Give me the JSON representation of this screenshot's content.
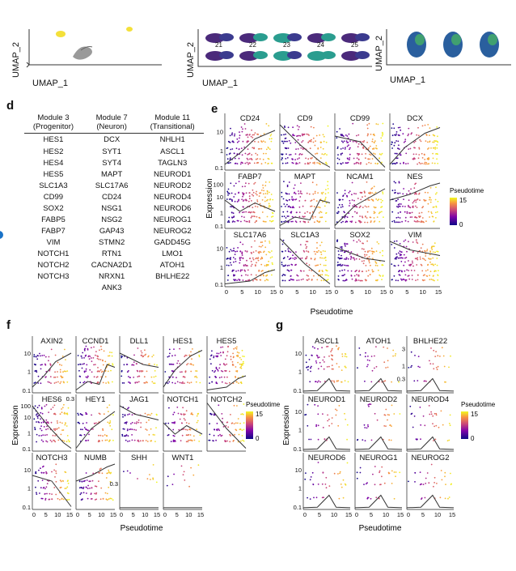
{
  "top_panels": {
    "umap_x_label": "UMAP_1",
    "umap_y_label": "UMAP_2",
    "cluster_labels": [
      "21",
      "22",
      "23",
      "24",
      "25"
    ]
  },
  "panel_d": {
    "letter": "d",
    "headers": [
      {
        "line1": "Module 3",
        "line2": "(Progenitor)"
      },
      {
        "line1": "Module 7",
        "line2": "(Neuron)"
      },
      {
        "line1": "Module 11",
        "line2": "(Transitional)"
      }
    ],
    "columns": [
      [
        "HES1",
        "HES2",
        "HES4",
        "HES5",
        "SLC1A3",
        "CD99",
        "SOX2",
        "FABP5",
        "FABP7",
        "VIM",
        "NOTCH1",
        "NOTCH2",
        "NOTCH3"
      ],
      [
        "DCX",
        "SYT1",
        "SYT4",
        "MAPT",
        "SLC17A6",
        "CD24",
        "NSG1",
        "NSG2",
        "GAP43",
        "STMN2",
        "RTN1",
        "CACNA2D1",
        "NRXN1",
        "ANK3"
      ],
      [
        "NHLH1",
        "ASCL1",
        "TAGLN3",
        "NEUROD1",
        "NEUROD2",
        "NEUROD4",
        "NEUROD6",
        "NEUROG1",
        "NEUROG2",
        "GADD45G",
        "LMO1",
        "ATOH1",
        "BHLHE22"
      ]
    ]
  },
  "panel_e": {
    "letter": "e",
    "genes": [
      "CD24",
      "CD9",
      "CD99",
      "DCX",
      "FABP7",
      "MAPT",
      "NCAM1",
      "NES",
      "SLC17A6",
      "SLC1A3",
      "SOX2",
      "VIM"
    ],
    "y_ticks_a": [
      "10",
      "1",
      "0.1"
    ],
    "y_ticks_b": [
      "100",
      "10",
      "1",
      "0.1"
    ],
    "x_ticks": [
      "0",
      "5",
      "10",
      "15"
    ],
    "xlabel": "Pseudotime",
    "ylabel": "Expression",
    "legend_title": "Pseudotime",
    "legend_max": "15",
    "legend_min": "0"
  },
  "panel_f": {
    "letter": "f",
    "genes": [
      "AXIN2",
      "CCND1",
      "DLL1",
      "HES1",
      "HES5",
      "HES6",
      "HEY1",
      "JAG1",
      "NOTCH1",
      "NOTCH2",
      "NOTCH3",
      "NUMB",
      "SHH",
      "WNT1"
    ],
    "y_ticks_a": [
      "10",
      "1",
      "0.1"
    ],
    "y_ticks_b": [
      "100",
      "10",
      "1",
      "0.1"
    ],
    "y_ticks_c": [
      "0.3"
    ],
    "x_ticks": [
      "0",
      "5",
      "10",
      "15"
    ],
    "xlabel": "Pseudotime",
    "ylabel": "Expression",
    "legend_title": "Pseudotime",
    "legend_max": "15",
    "legend_min": "0"
  },
  "panel_g": {
    "letter": "g",
    "genes": [
      "ASCL1",
      "ATOH1",
      "BHLHE22",
      "NEUROD1",
      "NEUROD2",
      "NEUROD4",
      "NEUROD6",
      "NEUROG1",
      "NEUROG2"
    ],
    "y_ticks_a": [
      "10",
      "1",
      "0.1"
    ],
    "y_ticks_c": [
      "3",
      "1",
      "0.3"
    ],
    "x_ticks": [
      "0",
      "5",
      "10",
      "15"
    ],
    "xlabel": "Pseudotime",
    "ylabel": "Expression",
    "legend_title": "Pseudotime",
    "legend_max": "15",
    "legend_min": "0"
  },
  "colors": {
    "plasma_start": "#0d0887",
    "plasma_mid": "#cc4778",
    "plasma_end": "#f0f921",
    "trend_line": "#333333",
    "umap_teal": "#2a9d8f",
    "umap_purple": "#4b2a7b"
  }
}
